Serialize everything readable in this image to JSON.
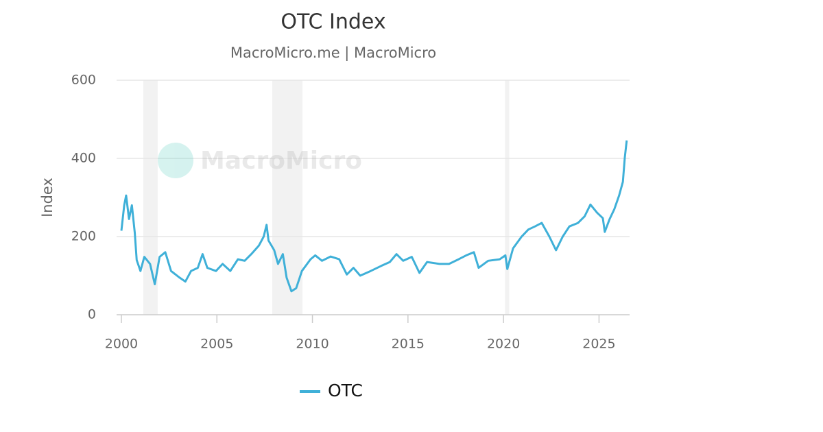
{
  "chart_data": {
    "type": "line",
    "title": "OTC Index",
    "subtitle": "MacroMicro.me | MacroMicro",
    "watermark": "MacroMicro",
    "y_label": "Index",
    "x": [
      2000.0,
      2000.15,
      2000.25,
      2000.4,
      2000.55,
      2000.7,
      2000.8,
      2001.0,
      2001.2,
      2001.5,
      2001.75,
      2002.0,
      2002.3,
      2002.6,
      2003.05,
      2003.35,
      2003.65,
      2004.0,
      2004.25,
      2004.5,
      2004.95,
      2005.3,
      2005.7,
      2006.1,
      2006.45,
      2006.8,
      2007.2,
      2007.45,
      2007.6,
      2007.7,
      2008.0,
      2008.2,
      2008.45,
      2008.65,
      2008.9,
      2009.15,
      2009.45,
      2009.9,
      2010.15,
      2010.5,
      2010.95,
      2011.4,
      2011.8,
      2012.15,
      2012.5,
      2013.05,
      2013.6,
      2014.05,
      2014.4,
      2014.75,
      2015.2,
      2015.6,
      2016.0,
      2016.65,
      2017.15,
      2017.65,
      2018.05,
      2018.45,
      2018.7,
      2019.2,
      2019.8,
      2020.1,
      2020.2,
      2020.5,
      2020.95,
      2021.3,
      2021.65,
      2022.0,
      2022.4,
      2022.75,
      2023.1,
      2023.45,
      2023.9,
      2024.25,
      2024.55,
      2024.9,
      2025.2,
      2025.3,
      2025.55,
      2025.8,
      2026.05,
      2026.25,
      2026.35,
      2026.45
    ],
    "series": [
      {
        "name": "OTC",
        "color": "#3fb0d8",
        "values": [
          215,
          280,
          305,
          245,
          280,
          210,
          140,
          112,
          148,
          130,
          78,
          148,
          160,
          112,
          95,
          85,
          112,
          120,
          155,
          120,
          112,
          130,
          112,
          142,
          138,
          155,
          177,
          200,
          230,
          190,
          165,
          130,
          155,
          95,
          60,
          68,
          112,
          142,
          152,
          138,
          149,
          142,
          103,
          120,
          100,
          112,
          125,
          135,
          155,
          138,
          148,
          107,
          135,
          130,
          130,
          142,
          152,
          160,
          120,
          138,
          142,
          152,
          117,
          170,
          200,
          218,
          226,
          235,
          200,
          165,
          200,
          226,
          235,
          252,
          282,
          261,
          247,
          212,
          244,
          270,
          305,
          340,
          402,
          446
        ]
      }
    ],
    "shaded_ranges": [
      [
        2001.15,
        2001.9
      ],
      [
        2007.9,
        2009.48
      ],
      [
        2020.08,
        2020.3
      ]
    ],
    "xlim": [
      1999.75,
      2026.6
    ],
    "xticks": [
      2000,
      2005,
      2010,
      2015,
      2020,
      2025
    ],
    "ylim": [
      0,
      600
    ],
    "yticks": [
      0,
      200,
      400,
      600
    ],
    "grid": true
  }
}
